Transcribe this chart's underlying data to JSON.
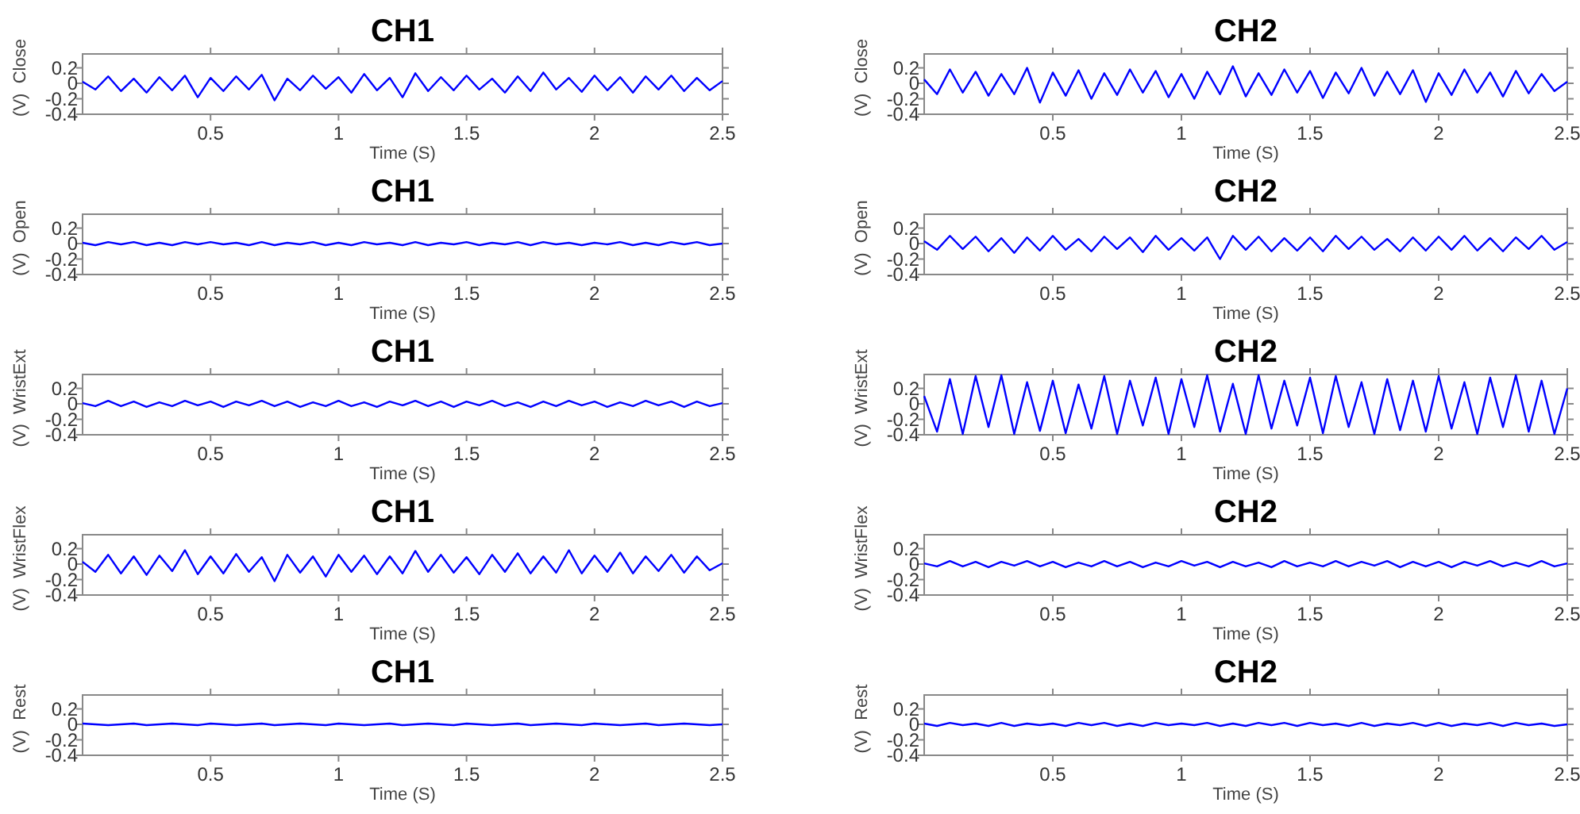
{
  "chart_data": [
    {
      "type": "line",
      "title": "CH1",
      "xlabel": "Time (S)",
      "ylabel": "(V)  Close",
      "color": "#0000ff",
      "xlim": [
        0,
        2.5
      ],
      "ylim": [
        -0.4,
        0.38
      ],
      "xticks": [
        0.5,
        1,
        1.5,
        2,
        2.5
      ],
      "yticks": [
        0.2,
        0,
        -0.2,
        -0.4
      ],
      "x": [
        0,
        0.05,
        0.1,
        0.15,
        0.2,
        0.25,
        0.3,
        0.35,
        0.4,
        0.45,
        0.5,
        0.55,
        0.6,
        0.65,
        0.7,
        0.75,
        0.8,
        0.85,
        0.9,
        0.95,
        1,
        1.05,
        1.1,
        1.15,
        1.2,
        1.25,
        1.3,
        1.35,
        1.4,
        1.45,
        1.5,
        1.55,
        1.6,
        1.65,
        1.7,
        1.75,
        1.8,
        1.85,
        1.9,
        1.95,
        2,
        2.05,
        2.1,
        2.15,
        2.2,
        2.25,
        2.3,
        2.35,
        2.4,
        2.45,
        2.5
      ],
      "values": [
        0.02,
        -0.08,
        0.09,
        -0.1,
        0.06,
        -0.12,
        0.08,
        -0.09,
        0.1,
        -0.18,
        0.07,
        -0.1,
        0.09,
        -0.08,
        0.11,
        -0.22,
        0.06,
        -0.09,
        0.1,
        -0.07,
        0.08,
        -0.12,
        0.12,
        -0.09,
        0.07,
        -0.18,
        0.13,
        -0.1,
        0.08,
        -0.09,
        0.1,
        -0.08,
        0.06,
        -0.12,
        0.09,
        -0.1,
        0.14,
        -0.08,
        0.07,
        -0.11,
        0.1,
        -0.09,
        0.08,
        -0.12,
        0.09,
        -0.08,
        0.1,
        -0.1,
        0.07,
        -0.09,
        0.03
      ]
    },
    {
      "type": "line",
      "title": "CH2",
      "xlabel": "Time (S)",
      "ylabel": "(V)  Close",
      "color": "#0000ff",
      "xlim": [
        0,
        2.5
      ],
      "ylim": [
        -0.4,
        0.38
      ],
      "xticks": [
        0.5,
        1,
        1.5,
        2,
        2.5
      ],
      "yticks": [
        0.2,
        0,
        -0.2,
        -0.4
      ],
      "x": [
        0,
        0.05,
        0.1,
        0.15,
        0.2,
        0.25,
        0.3,
        0.35,
        0.4,
        0.45,
        0.5,
        0.55,
        0.6,
        0.65,
        0.7,
        0.75,
        0.8,
        0.85,
        0.9,
        0.95,
        1,
        1.05,
        1.1,
        1.15,
        1.2,
        1.25,
        1.3,
        1.35,
        1.4,
        1.45,
        1.5,
        1.55,
        1.6,
        1.65,
        1.7,
        1.75,
        1.8,
        1.85,
        1.9,
        1.95,
        2,
        2.05,
        2.1,
        2.15,
        2.2,
        2.25,
        2.3,
        2.35,
        2.4,
        2.45,
        2.5
      ],
      "values": [
        0.05,
        -0.14,
        0.18,
        -0.12,
        0.15,
        -0.16,
        0.12,
        -0.14,
        0.2,
        -0.25,
        0.14,
        -0.16,
        0.17,
        -0.2,
        0.13,
        -0.15,
        0.18,
        -0.12,
        0.16,
        -0.18,
        0.12,
        -0.2,
        0.15,
        -0.14,
        0.22,
        -0.17,
        0.13,
        -0.15,
        0.18,
        -0.12,
        0.16,
        -0.19,
        0.14,
        -0.13,
        0.2,
        -0.16,
        0.15,
        -0.14,
        0.17,
        -0.24,
        0.13,
        -0.15,
        0.18,
        -0.12,
        0.14,
        -0.17,
        0.16,
        -0.13,
        0.12,
        -0.1,
        0.02
      ]
    },
    {
      "type": "line",
      "title": "CH1",
      "xlabel": "Time (S)",
      "ylabel": "(V)  Open",
      "color": "#0000ff",
      "xlim": [
        0,
        2.5
      ],
      "ylim": [
        -0.4,
        0.38
      ],
      "xticks": [
        0.5,
        1,
        1.5,
        2,
        2.5
      ],
      "yticks": [
        0.2,
        0,
        -0.2,
        -0.4
      ],
      "x": [
        0,
        0.05,
        0.1,
        0.15,
        0.2,
        0.25,
        0.3,
        0.35,
        0.4,
        0.45,
        0.5,
        0.55,
        0.6,
        0.65,
        0.7,
        0.75,
        0.8,
        0.85,
        0.9,
        0.95,
        1,
        1.05,
        1.1,
        1.15,
        1.2,
        1.25,
        1.3,
        1.35,
        1.4,
        1.45,
        1.5,
        1.55,
        1.6,
        1.65,
        1.7,
        1.75,
        1.8,
        1.85,
        1.9,
        1.95,
        2,
        2.05,
        2.1,
        2.15,
        2.2,
        2.25,
        2.3,
        2.35,
        2.4,
        2.45,
        2.5
      ],
      "values": [
        0.01,
        -0.02,
        0.02,
        -0.01,
        0.02,
        -0.02,
        0.01,
        -0.02,
        0.02,
        -0.01,
        0.02,
        -0.01,
        0.01,
        -0.02,
        0.02,
        -0.02,
        0.01,
        -0.01,
        0.02,
        -0.02,
        0.01,
        -0.02,
        0.02,
        -0.01,
        0.01,
        -0.02,
        0.02,
        -0.02,
        0.01,
        -0.01,
        0.02,
        -0.02,
        0.01,
        -0.01,
        0.02,
        -0.02,
        0.02,
        -0.01,
        0.01,
        -0.02,
        0.01,
        -0.01,
        0.02,
        -0.02,
        0.01,
        -0.02,
        0.02,
        -0.01,
        0.02,
        -0.02,
        0
      ]
    },
    {
      "type": "line",
      "title": "CH2",
      "xlabel": "Time (S)",
      "ylabel": "(V)  Open",
      "color": "#0000ff",
      "xlim": [
        0,
        2.5
      ],
      "ylim": [
        -0.4,
        0.38
      ],
      "xticks": [
        0.5,
        1,
        1.5,
        2,
        2.5
      ],
      "yticks": [
        0.2,
        0,
        -0.2,
        -0.4
      ],
      "x": [
        0,
        0.05,
        0.1,
        0.15,
        0.2,
        0.25,
        0.3,
        0.35,
        0.4,
        0.45,
        0.5,
        0.55,
        0.6,
        0.65,
        0.7,
        0.75,
        0.8,
        0.85,
        0.9,
        0.95,
        1,
        1.05,
        1.1,
        1.15,
        1.2,
        1.25,
        1.3,
        1.35,
        1.4,
        1.45,
        1.5,
        1.55,
        1.6,
        1.65,
        1.7,
        1.75,
        1.8,
        1.85,
        1.9,
        1.95,
        2,
        2.05,
        2.1,
        2.15,
        2.2,
        2.25,
        2.3,
        2.35,
        2.4,
        2.45,
        2.5
      ],
      "values": [
        0.03,
        -0.08,
        0.1,
        -0.07,
        0.09,
        -0.1,
        0.07,
        -0.12,
        0.08,
        -0.09,
        0.1,
        -0.08,
        0.06,
        -0.1,
        0.09,
        -0.07,
        0.08,
        -0.11,
        0.1,
        -0.08,
        0.07,
        -0.09,
        0.08,
        -0.2,
        0.1,
        -0.08,
        0.09,
        -0.1,
        0.07,
        -0.09,
        0.08,
        -0.1,
        0.1,
        -0.07,
        0.09,
        -0.08,
        0.06,
        -0.1,
        0.08,
        -0.09,
        0.09,
        -0.08,
        0.1,
        -0.09,
        0.07,
        -0.1,
        0.08,
        -0.07,
        0.1,
        -0.08,
        0.02
      ]
    },
    {
      "type": "line",
      "title": "CH1",
      "xlabel": "Time (S)",
      "ylabel": "(V)  WristExt",
      "color": "#0000ff",
      "xlim": [
        0,
        2.5
      ],
      "ylim": [
        -0.4,
        0.38
      ],
      "xticks": [
        0.5,
        1,
        1.5,
        2,
        2.5
      ],
      "yticks": [
        0.2,
        0,
        -0.2,
        -0.4
      ],
      "x": [
        0,
        0.05,
        0.1,
        0.15,
        0.2,
        0.25,
        0.3,
        0.35,
        0.4,
        0.45,
        0.5,
        0.55,
        0.6,
        0.65,
        0.7,
        0.75,
        0.8,
        0.85,
        0.9,
        0.95,
        1,
        1.05,
        1.1,
        1.15,
        1.2,
        1.25,
        1.3,
        1.35,
        1.4,
        1.45,
        1.5,
        1.55,
        1.6,
        1.65,
        1.7,
        1.75,
        1.8,
        1.85,
        1.9,
        1.95,
        2,
        2.05,
        2.1,
        2.15,
        2.2,
        2.25,
        2.3,
        2.35,
        2.4,
        2.45,
        2.5
      ],
      "values": [
        0.01,
        -0.03,
        0.04,
        -0.03,
        0.03,
        -0.04,
        0.02,
        -0.03,
        0.04,
        -0.02,
        0.03,
        -0.04,
        0.03,
        -0.02,
        0.04,
        -0.03,
        0.03,
        -0.04,
        0.02,
        -0.03,
        0.04,
        -0.03,
        0.02,
        -0.04,
        0.03,
        -0.02,
        0.04,
        -0.03,
        0.03,
        -0.04,
        0.03,
        -0.02,
        0.04,
        -0.03,
        0.02,
        -0.04,
        0.03,
        -0.03,
        0.04,
        -0.02,
        0.03,
        -0.04,
        0.02,
        -0.03,
        0.04,
        -0.02,
        0.03,
        -0.04,
        0.03,
        -0.03,
        0.01
      ]
    },
    {
      "type": "line",
      "title": "CH2",
      "xlabel": "Time (S)",
      "ylabel": "(V)  WristExt",
      "color": "#0000ff",
      "xlim": [
        0,
        2.5
      ],
      "ylim": [
        -0.4,
        0.38
      ],
      "xticks": [
        0.5,
        1,
        1.5,
        2,
        2.5
      ],
      "yticks": [
        0.2,
        0,
        -0.2,
        -0.4
      ],
      "x": [
        0,
        0.05,
        0.1,
        0.15,
        0.2,
        0.25,
        0.3,
        0.35,
        0.4,
        0.45,
        0.5,
        0.55,
        0.6,
        0.65,
        0.7,
        0.75,
        0.8,
        0.85,
        0.9,
        0.95,
        1,
        1.05,
        1.1,
        1.15,
        1.2,
        1.25,
        1.3,
        1.35,
        1.4,
        1.45,
        1.5,
        1.55,
        1.6,
        1.65,
        1.7,
        1.75,
        1.8,
        1.85,
        1.9,
        1.95,
        2,
        2.05,
        2.1,
        2.15,
        2.2,
        2.25,
        2.3,
        2.35,
        2.4,
        2.45,
        2.5
      ],
      "values": [
        0.1,
        -0.36,
        0.32,
        -0.39,
        0.36,
        -0.3,
        0.37,
        -0.39,
        0.28,
        -0.35,
        0.3,
        -0.38,
        0.25,
        -0.32,
        0.36,
        -0.39,
        0.3,
        -0.28,
        0.34,
        -0.39,
        0.32,
        -0.3,
        0.37,
        -0.36,
        0.26,
        -0.39,
        0.37,
        -0.32,
        0.3,
        -0.28,
        0.34,
        -0.38,
        0.36,
        -0.3,
        0.28,
        -0.39,
        0.32,
        -0.34,
        0.3,
        -0.36,
        0.36,
        -0.32,
        0.28,
        -0.39,
        0.34,
        -0.3,
        0.37,
        -0.36,
        0.3,
        -0.39,
        0.2
      ]
    },
    {
      "type": "line",
      "title": "CH1",
      "xlabel": "Time (S)",
      "ylabel": "(V)  WristFlex",
      "color": "#0000ff",
      "xlim": [
        0,
        2.5
      ],
      "ylim": [
        -0.4,
        0.38
      ],
      "xticks": [
        0.5,
        1,
        1.5,
        2,
        2.5
      ],
      "yticks": [
        0.2,
        0,
        -0.2,
        -0.4
      ],
      "x": [
        0,
        0.05,
        0.1,
        0.15,
        0.2,
        0.25,
        0.3,
        0.35,
        0.4,
        0.45,
        0.5,
        0.55,
        0.6,
        0.65,
        0.7,
        0.75,
        0.8,
        0.85,
        0.9,
        0.95,
        1,
        1.05,
        1.1,
        1.15,
        1.2,
        1.25,
        1.3,
        1.35,
        1.4,
        1.45,
        1.5,
        1.55,
        1.6,
        1.65,
        1.7,
        1.75,
        1.8,
        1.85,
        1.9,
        1.95,
        2,
        2.05,
        2.1,
        2.15,
        2.2,
        2.25,
        2.3,
        2.35,
        2.4,
        2.45,
        2.5
      ],
      "values": [
        0.03,
        -0.1,
        0.12,
        -0.12,
        0.1,
        -0.14,
        0.11,
        -0.09,
        0.18,
        -0.13,
        0.1,
        -0.12,
        0.13,
        -0.1,
        0.09,
        -0.22,
        0.12,
        -0.11,
        0.1,
        -0.16,
        0.12,
        -0.1,
        0.11,
        -0.13,
        0.1,
        -0.12,
        0.17,
        -0.1,
        0.12,
        -0.11,
        0.09,
        -0.13,
        0.12,
        -0.1,
        0.14,
        -0.12,
        0.1,
        -0.11,
        0.18,
        -0.12,
        0.11,
        -0.1,
        0.15,
        -0.12,
        0.1,
        -0.09,
        0.12,
        -0.11,
        0.1,
        -0.08,
        0.01
      ]
    },
    {
      "type": "line",
      "title": "CH2",
      "xlabel": "Time (S)",
      "ylabel": "(V)  WristFlex",
      "color": "#0000ff",
      "xlim": [
        0,
        2.5
      ],
      "ylim": [
        -0.4,
        0.38
      ],
      "xticks": [
        0.5,
        1,
        1.5,
        2,
        2.5
      ],
      "yticks": [
        0.2,
        0,
        -0.2,
        -0.4
      ],
      "x": [
        0,
        0.05,
        0.1,
        0.15,
        0.2,
        0.25,
        0.3,
        0.35,
        0.4,
        0.45,
        0.5,
        0.55,
        0.6,
        0.65,
        0.7,
        0.75,
        0.8,
        0.85,
        0.9,
        0.95,
        1,
        1.05,
        1.1,
        1.15,
        1.2,
        1.25,
        1.3,
        1.35,
        1.4,
        1.45,
        1.5,
        1.55,
        1.6,
        1.65,
        1.7,
        1.75,
        1.8,
        1.85,
        1.9,
        1.95,
        2,
        2.05,
        2.1,
        2.15,
        2.2,
        2.25,
        2.3,
        2.35,
        2.4,
        2.45,
        2.5
      ],
      "values": [
        0.01,
        -0.03,
        0.04,
        -0.03,
        0.03,
        -0.04,
        0.03,
        -0.02,
        0.04,
        -0.03,
        0.03,
        -0.04,
        0.02,
        -0.03,
        0.04,
        -0.03,
        0.03,
        -0.04,
        0.02,
        -0.03,
        0.04,
        -0.02,
        0.03,
        -0.04,
        0.03,
        -0.03,
        0.02,
        -0.04,
        0.04,
        -0.03,
        0.02,
        -0.03,
        0.04,
        -0.03,
        0.03,
        -0.02,
        0.04,
        -0.04,
        0.03,
        -0.03,
        0.03,
        -0.04,
        0.03,
        -0.02,
        0.04,
        -0.03,
        0.02,
        -0.03,
        0.04,
        -0.03,
        0.01
      ]
    },
    {
      "type": "line",
      "title": "CH1",
      "xlabel": "Time (S)",
      "ylabel": "(V)  Rest",
      "color": "#0000ff",
      "xlim": [
        0,
        2.5
      ],
      "ylim": [
        -0.4,
        0.38
      ],
      "xticks": [
        0.5,
        1,
        1.5,
        2,
        2.5
      ],
      "yticks": [
        0.2,
        0,
        -0.2,
        -0.4
      ],
      "x": [
        0,
        0.05,
        0.1,
        0.15,
        0.2,
        0.25,
        0.3,
        0.35,
        0.4,
        0.45,
        0.5,
        0.55,
        0.6,
        0.65,
        0.7,
        0.75,
        0.8,
        0.85,
        0.9,
        0.95,
        1,
        1.05,
        1.1,
        1.15,
        1.2,
        1.25,
        1.3,
        1.35,
        1.4,
        1.45,
        1.5,
        1.55,
        1.6,
        1.65,
        1.7,
        1.75,
        1.8,
        1.85,
        1.9,
        1.95,
        2,
        2.05,
        2.1,
        2.15,
        2.2,
        2.25,
        2.3,
        2.35,
        2.4,
        2.45,
        2.5
      ],
      "values": [
        0.01,
        0,
        -0.01,
        0,
        0.01,
        -0.01,
        0,
        0.01,
        0,
        -0.01,
        0.01,
        0,
        -0.01,
        0,
        0.01,
        -0.01,
        0,
        0.01,
        0,
        -0.01,
        0.01,
        0,
        -0.01,
        0,
        0.01,
        -0.01,
        0,
        0.01,
        0,
        -0.01,
        0.01,
        0,
        -0.01,
        0,
        0.01,
        -0.01,
        0,
        0.01,
        0,
        -0.01,
        0.01,
        0,
        -0.01,
        0,
        0.01,
        -0.01,
        0,
        0.01,
        0,
        -0.01,
        0
      ]
    },
    {
      "type": "line",
      "title": "CH2",
      "xlabel": "Time (S)",
      "ylabel": "(V)  Rest",
      "color": "#0000ff",
      "xlim": [
        0,
        2.5
      ],
      "ylim": [
        -0.4,
        0.38
      ],
      "xticks": [
        0.5,
        1,
        1.5,
        2,
        2.5
      ],
      "yticks": [
        0.2,
        0,
        -0.2,
        -0.4
      ],
      "x": [
        0,
        0.05,
        0.1,
        0.15,
        0.2,
        0.25,
        0.3,
        0.35,
        0.4,
        0.45,
        0.5,
        0.55,
        0.6,
        0.65,
        0.7,
        0.75,
        0.8,
        0.85,
        0.9,
        0.95,
        1,
        1.05,
        1.1,
        1.15,
        1.2,
        1.25,
        1.3,
        1.35,
        1.4,
        1.45,
        1.5,
        1.55,
        1.6,
        1.65,
        1.7,
        1.75,
        1.8,
        1.85,
        1.9,
        1.95,
        2,
        2.05,
        2.1,
        2.15,
        2.2,
        2.25,
        2.3,
        2.35,
        2.4,
        2.45,
        2.5
      ],
      "values": [
        0.01,
        -0.02,
        0.02,
        -0.01,
        0.01,
        -0.02,
        0.02,
        -0.02,
        0.01,
        -0.01,
        0.01,
        -0.02,
        0.02,
        -0.01,
        0.02,
        -0.02,
        0.01,
        -0.02,
        0.02,
        -0.01,
        0.01,
        -0.01,
        0.02,
        -0.02,
        0.01,
        -0.02,
        0.02,
        -0.01,
        0.02,
        -0.02,
        0.02,
        -0.01,
        0.01,
        -0.02,
        0.02,
        -0.02,
        0.01,
        -0.01,
        0.02,
        -0.02,
        0.02,
        -0.02,
        0.01,
        -0.01,
        0.02,
        -0.02,
        0.02,
        -0.01,
        0.01,
        -0.02,
        0
      ]
    }
  ]
}
